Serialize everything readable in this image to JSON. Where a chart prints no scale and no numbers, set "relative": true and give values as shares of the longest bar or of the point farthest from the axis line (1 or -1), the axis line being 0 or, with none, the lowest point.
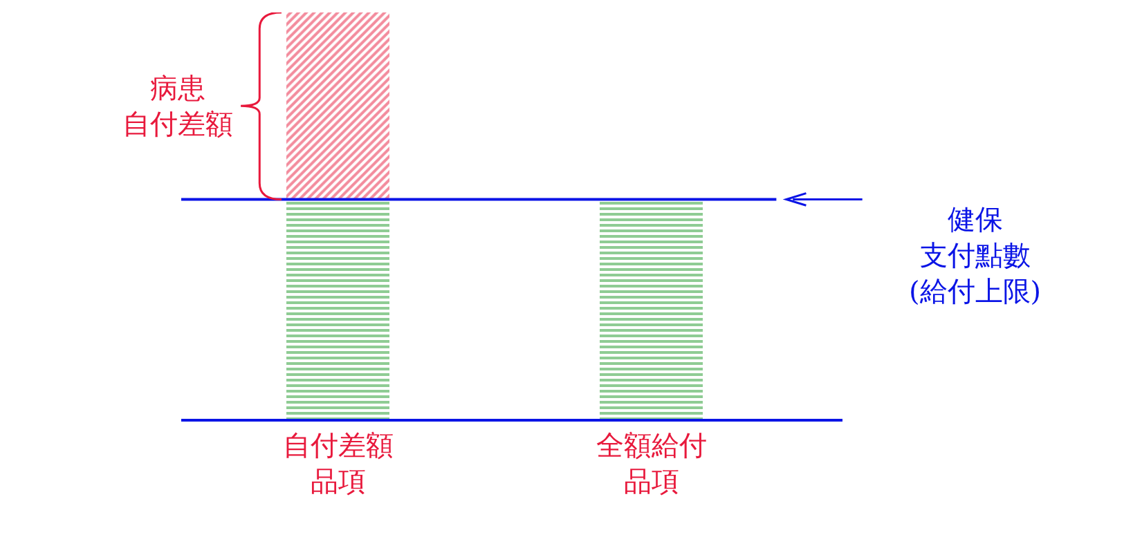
{
  "chart_data": {
    "type": "bar",
    "relative": true,
    "stacked": true,
    "categories": [
      "自付差額品項",
      "全額給付品項"
    ],
    "series": [
      {
        "color": "#1f9a2a",
        "values": [
          0.54,
          0.54
        ]
      },
      {
        "color": "#e8193c",
        "values": [
          0.46,
          null
        ]
      }
    ],
    "ref_lines": [
      {
        "axis": "y",
        "value": 0.54,
        "label": "健保支付點數(給付上限)",
        "color": "#0a14e6"
      }
    ],
    "annotations": [
      "病患自付差額"
    ]
  }
}
